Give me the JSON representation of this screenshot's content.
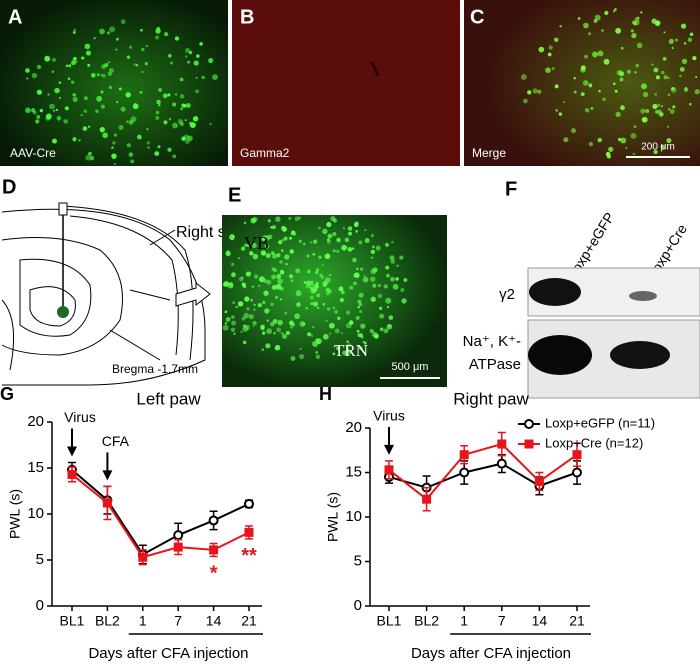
{
  "images": [
    {
      "letter": "A",
      "caption": "AAV-Cre"
    },
    {
      "letter": "B",
      "caption": "Gamma2"
    },
    {
      "letter": "C",
      "caption": "Merge",
      "scale": "200 μm"
    }
  ],
  "diagram": {
    "letter": "D",
    "side": "Right side",
    "bregma": "Bregma -1.7mm"
  },
  "panel_e": {
    "letter": "E",
    "vb": "VB",
    "trn": "TRN",
    "scale": "500 μm"
  },
  "blot": {
    "letter": "F",
    "lanes": [
      "Loxp+eGFP",
      "Loxp+Cre"
    ],
    "rows": [
      "γ2",
      "Na⁺, K⁺-",
      "ATPase"
    ]
  },
  "chart_data": [
    {
      "type": "line",
      "letter": "G",
      "title": "Left paw",
      "ylabel": "PWL (s)",
      "xlabel": "Days after CFA injection",
      "categories": [
        "BL1",
        "BL2",
        "1",
        "7",
        "14",
        "21"
      ],
      "ylim": [
        0,
        20
      ],
      "yticks": [
        0,
        5,
        10,
        15,
        20
      ],
      "series": [
        {
          "color": "#000000",
          "marker": "open-circle",
          "values": [
            14.8,
            11.5,
            5.6,
            7.7,
            9.3,
            11.1
          ],
          "errors": [
            0.8,
            1.5,
            1.0,
            1.3,
            1.0,
            0.4
          ]
        },
        {
          "color": "#e8141c",
          "marker": "square",
          "values": [
            14.3,
            11.2,
            5.3,
            6.4,
            6.1,
            8.0
          ],
          "errors": [
            0.8,
            1.8,
            0.8,
            0.8,
            0.7,
            0.7
          ]
        }
      ],
      "annotations": [
        {
          "text": "Virus",
          "x": "BL1",
          "kind": "arrow"
        },
        {
          "text": "CFA",
          "x": "BL2",
          "kind": "arrow"
        },
        {
          "text": "*",
          "x": "14",
          "kind": "significance"
        },
        {
          "text": "**",
          "x": "21",
          "kind": "significance"
        }
      ]
    },
    {
      "type": "line",
      "letter": "H",
      "title": "Right paw",
      "ylabel": "PWL (s)",
      "xlabel": "Days after CFA injection",
      "categories": [
        "BL1",
        "BL2",
        "1",
        "7",
        "14",
        "21"
      ],
      "ylim": [
        0,
        20
      ],
      "yticks": [
        0,
        5,
        10,
        15,
        20
      ],
      "legend": "upper right",
      "series": [
        {
          "name": "Loxp+eGFP (n=11)",
          "color": "#000000",
          "marker": "open-circle",
          "values": [
            14.5,
            13.3,
            15.0,
            16.0,
            13.5,
            15.0
          ],
          "errors": [
            0.7,
            1.3,
            1.3,
            1.0,
            1.0,
            1.3
          ]
        },
        {
          "name": "Loxp+Cre (n=12)",
          "color": "#e8141c",
          "marker": "square",
          "values": [
            15.3,
            12.0,
            17.0,
            18.2,
            14.0,
            17.0
          ],
          "errors": [
            1.0,
            1.3,
            1.0,
            1.3,
            1.0,
            1.3
          ]
        }
      ],
      "annotations": [
        {
          "text": "Virus",
          "x": "BL1",
          "kind": "arrow"
        }
      ]
    }
  ]
}
